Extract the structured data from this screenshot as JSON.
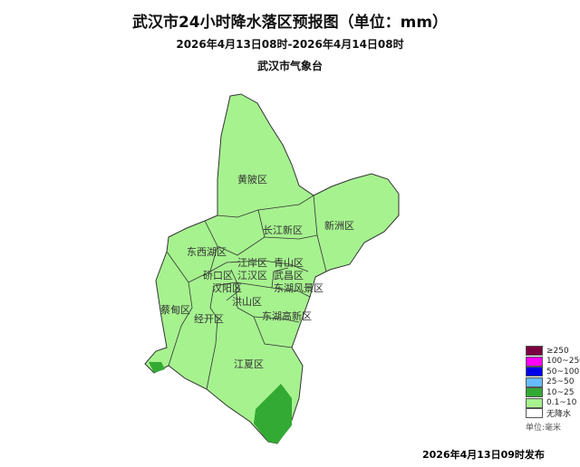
{
  "title": "武汉市24小时降水落区预报图（单位：mm）",
  "subtitle": "2026年4月13日08时-2026年4月14日08时",
  "organization": "武汉市气象台",
  "districts": [
    "黄陂区",
    "新洲区",
    "长江新区",
    "东西湖区",
    "江岸区",
    "青山区",
    "硚口区",
    "江汉区",
    "武昌区",
    "东湖风景区",
    "汉阳区",
    "洪山区",
    "蔡甸区",
    "经开区",
    "东湖高新区",
    "江夏区"
  ],
  "legend": {
    "items": [
      {
        "label": "≥250",
        "color": "#7b0040"
      },
      {
        "label": "100~250",
        "color": "#ff00ff"
      },
      {
        "label": "50~100",
        "color": "#0000ee"
      },
      {
        "label": "25~50",
        "color": "#66bbff"
      },
      {
        "label": "10~25",
        "color": "#33aa33"
      },
      {
        "label": "0.1~10",
        "color": "#a6f28f"
      },
      {
        "label": "无降水",
        "color": "#ffffff"
      }
    ],
    "unit": "单位:毫米"
  },
  "published": "2026年4月13日09时发布"
}
